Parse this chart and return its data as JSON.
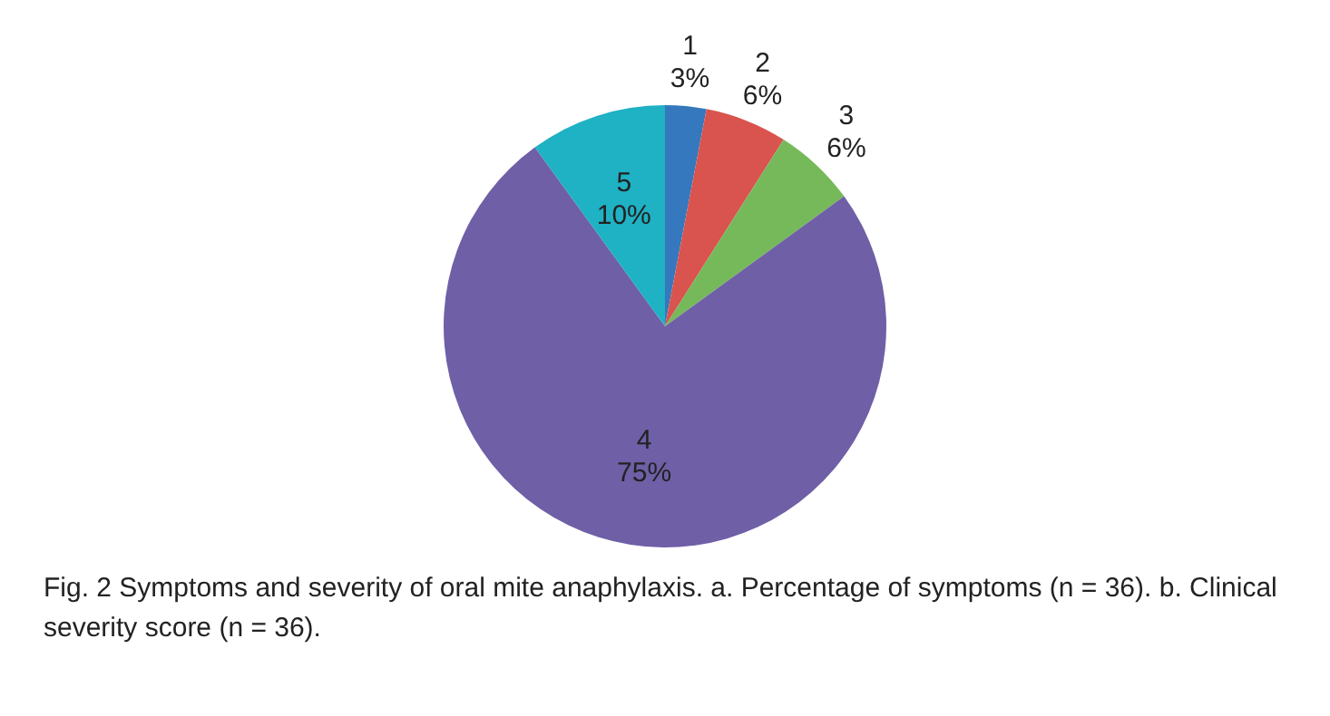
{
  "chart_data": {
    "type": "pie",
    "categories": [
      "1",
      "2",
      "3",
      "4",
      "5"
    ],
    "values": [
      3,
      6,
      6,
      75,
      10
    ],
    "value_labels": [
      "3%",
      "6%",
      "6%",
      "75%",
      "10%"
    ],
    "colors": [
      "#3578bd",
      "#d9534f",
      "#76b95a",
      "#6f5fa6",
      "#1fb1c4"
    ],
    "annotations": [
      "Fig. 2  Symptoms and severity of oral mite anaphylaxis. a. Percentage of symptoms (n = 36). b. Clinical severity score (n = 36)."
    ]
  }
}
